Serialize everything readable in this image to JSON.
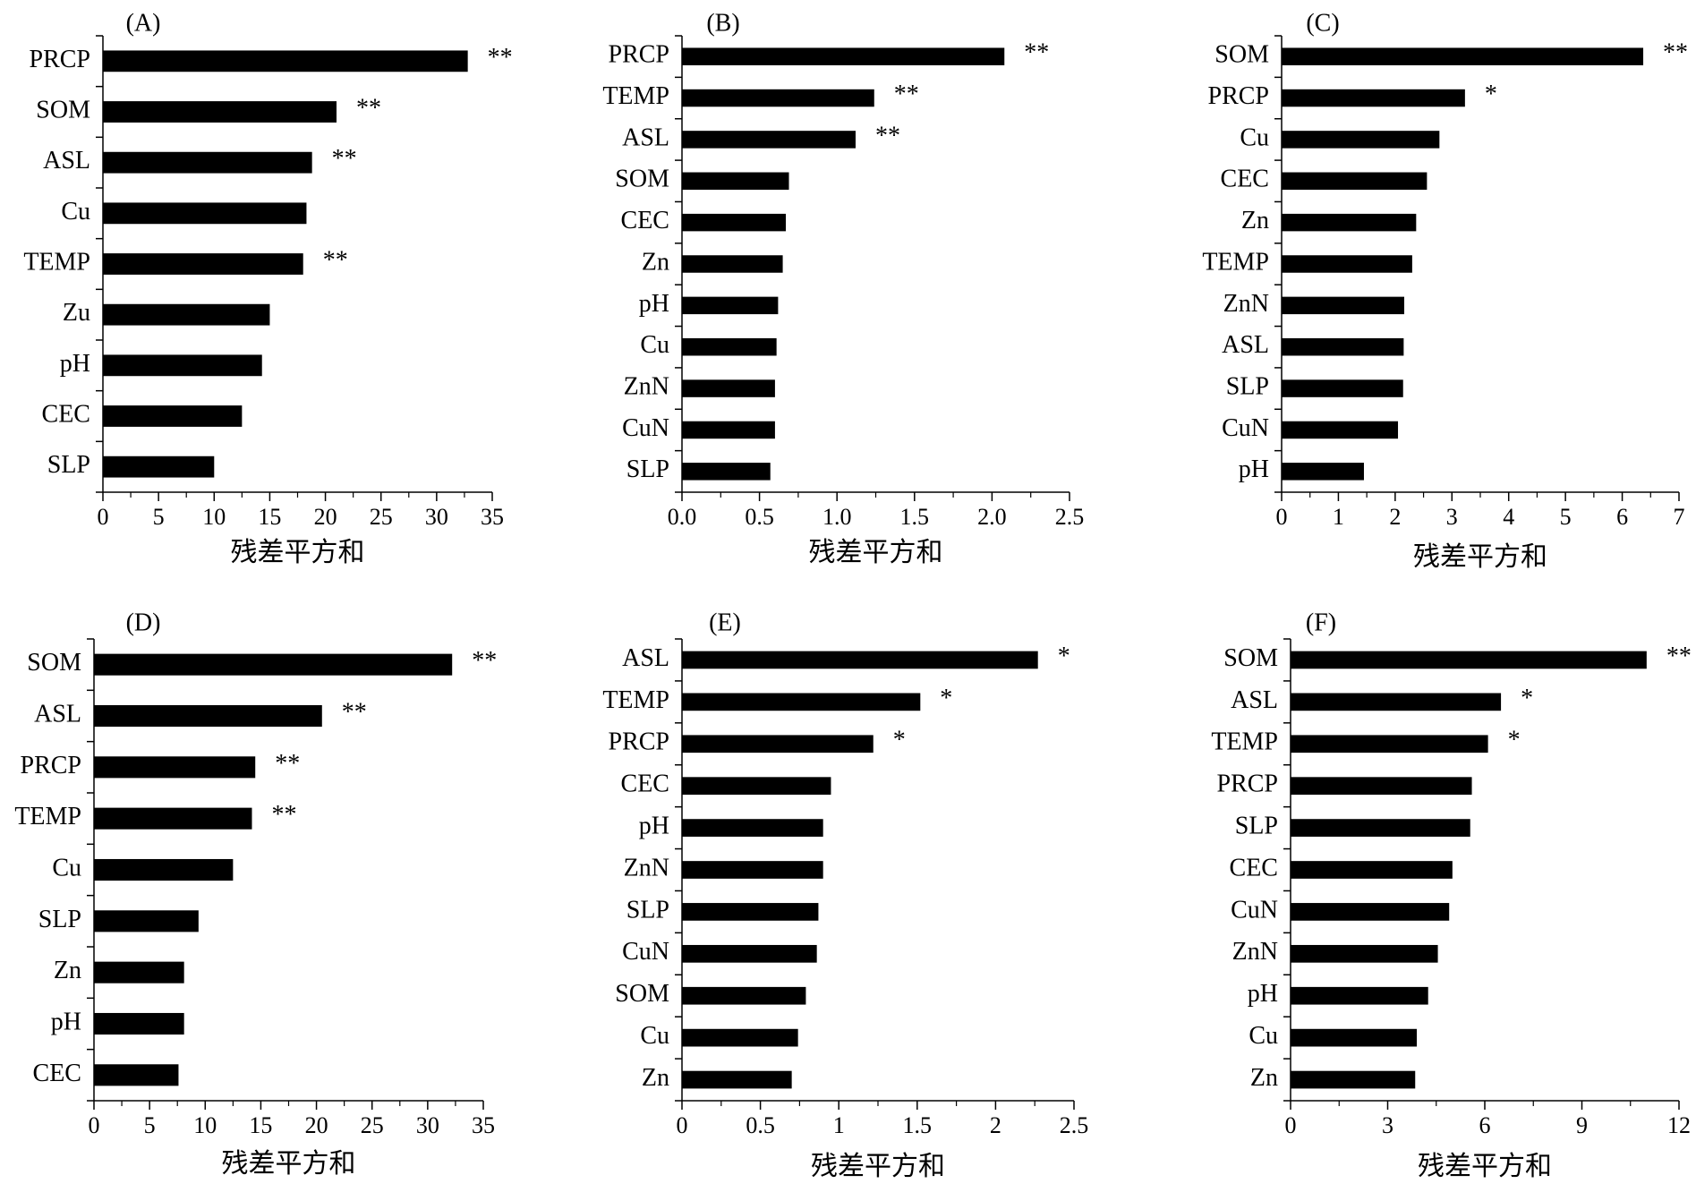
{
  "chart_data": [
    {
      "type": "bar",
      "orientation": "horizontal",
      "panel": "(A)",
      "xlabel": "残差平方和",
      "xlim": [
        0,
        35
      ],
      "xticks": [
        "0",
        "5",
        "10",
        "15",
        "20",
        "25",
        "30",
        "35"
      ],
      "categories": [
        "PRCP",
        "SOM",
        "ASL",
        "Cu",
        "TEMP",
        "Zu",
        "pH",
        "CEC",
        "SLP"
      ],
      "values": [
        32.8,
        21.0,
        18.8,
        18.3,
        18.0,
        15.0,
        14.3,
        12.5,
        10.0
      ],
      "significance": [
        "**",
        "**",
        "**",
        "",
        "**",
        "",
        "",
        "",
        ""
      ]
    },
    {
      "type": "bar",
      "orientation": "horizontal",
      "panel": "(B)",
      "xlabel": "残差平方和",
      "xlim": [
        0,
        2.5
      ],
      "xticks": [
        "0.0",
        "0.5",
        "1.0",
        "1.5",
        "2.0",
        "2.5"
      ],
      "categories": [
        "PRCP",
        "TEMP",
        "ASL",
        "SOM",
        "CEC",
        "Zn",
        "pH",
        "Cu",
        "ZnN",
        "CuN",
        "SLP"
      ],
      "values": [
        2.08,
        1.24,
        1.12,
        0.69,
        0.67,
        0.65,
        0.62,
        0.61,
        0.6,
        0.6,
        0.57
      ],
      "significance": [
        "**",
        "**",
        "**",
        "",
        "",
        "",
        "",
        "",
        "",
        "",
        ""
      ]
    },
    {
      "type": "bar",
      "orientation": "horizontal",
      "panel": "(C)",
      "xlabel": "残差平方和",
      "xlim": [
        0,
        7
      ],
      "xticks": [
        "0",
        "1",
        "2",
        "3",
        "4",
        "5",
        "6",
        "7"
      ],
      "categories": [
        "SOM",
        "PRCP",
        "Cu",
        "CEC",
        "Zn",
        "TEMP",
        "ZnN",
        "ASL",
        "SLP",
        "CuN",
        "pH"
      ],
      "values": [
        6.37,
        3.23,
        2.78,
        2.56,
        2.37,
        2.3,
        2.16,
        2.15,
        2.14,
        2.05,
        1.45
      ],
      "significance": [
        "**",
        "*",
        "",
        "",
        "",
        "",
        "",
        "",
        "",
        "",
        ""
      ]
    },
    {
      "type": "bar",
      "orientation": "horizontal",
      "panel": "(D)",
      "xlabel": "残差平方和",
      "xlim": [
        0,
        35
      ],
      "xticks": [
        "0",
        "5",
        "10",
        "15",
        "20",
        "25",
        "30",
        "35"
      ],
      "categories": [
        "SOM",
        "ASL",
        "PRCP",
        "TEMP",
        "Cu",
        "SLP",
        "Zn",
        "pH",
        "CEC"
      ],
      "values": [
        32.2,
        20.5,
        14.5,
        14.2,
        12.5,
        9.4,
        8.1,
        8.1,
        7.6
      ],
      "significance": [
        "**",
        "**",
        "**",
        "**",
        "",
        "",
        "",
        "",
        ""
      ]
    },
    {
      "type": "bar",
      "orientation": "horizontal",
      "panel": "(E)",
      "xlabel": "残差平方和",
      "xlim": [
        0,
        2.5
      ],
      "xticks": [
        "0",
        "0.5",
        "1",
        "1.5",
        "2",
        "2.5"
      ],
      "categories": [
        "ASL",
        "TEMP",
        "PRCP",
        "CEC",
        "pH",
        "ZnN",
        "SLP",
        "CuN",
        "SOM",
        "Cu",
        "Zn"
      ],
      "values": [
        2.27,
        1.52,
        1.22,
        0.95,
        0.9,
        0.9,
        0.87,
        0.86,
        0.79,
        0.74,
        0.7
      ],
      "significance": [
        "*",
        "*",
        "*",
        "",
        "",
        "",
        "",
        "",
        "",
        "",
        ""
      ]
    },
    {
      "type": "bar",
      "orientation": "horizontal",
      "panel": "(F)",
      "xlabel": "残差平方和",
      "xlim": [
        0,
        12
      ],
      "xticks": [
        "0",
        "3",
        "6",
        "9",
        "12"
      ],
      "categories": [
        "SOM",
        "ASL",
        "TEMP",
        "PRCP",
        "SLP",
        "CEC",
        "CuN",
        "ZnN",
        "pH",
        "Cu",
        "Zn"
      ],
      "values": [
        11.0,
        6.5,
        6.1,
        5.6,
        5.55,
        5.0,
        4.9,
        4.55,
        4.25,
        3.9,
        3.85
      ],
      "significance": [
        "**",
        "*",
        "*",
        "",
        "",
        "",
        "",
        "",
        "",
        "",
        ""
      ]
    }
  ]
}
